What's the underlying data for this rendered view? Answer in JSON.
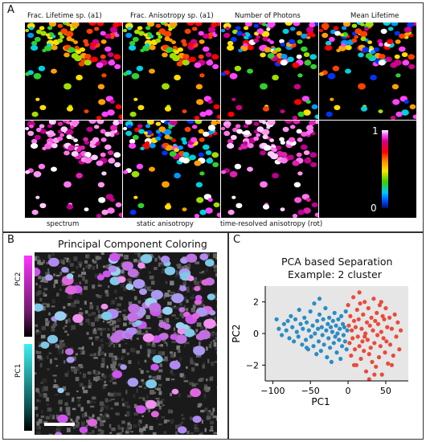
{
  "panel_a": {
    "letter": "A",
    "top_labels": [
      "Frac. Lifetime sp. (a1)",
      "Frac. Anisotropy sp. (a1)",
      "Number of Photons",
      "Mean Lifetime"
    ],
    "bottom_labels": [
      "spectrum",
      "static anisotropy",
      "time-resolved anisotropy (rot)"
    ],
    "colorbar_max": "1",
    "colorbar_min": "0"
  },
  "panel_b": {
    "letter": "B",
    "title": "Principal Component Coloring",
    "pc2_label": "PC2",
    "pc1_label": "PC1"
  },
  "panel_c": {
    "letter": "C"
  },
  "colors": {
    "cluster_blue": "#2a8cc4",
    "cluster_red": "#ea4a3a",
    "plot_bg": "#e6e6e6"
  },
  "chart_data": {
    "type": "scatter",
    "title": "PCA based Separation",
    "subtitle": "Example: 2 cluster",
    "xlabel": "PC1",
    "ylabel": "PC2",
    "xlim": [
      -110,
      80
    ],
    "ylim": [
      -3,
      3
    ],
    "xticks": [
      -100,
      -50,
      0,
      50
    ],
    "yticks": [
      -2,
      0,
      2
    ],
    "grid": false,
    "series": [
      {
        "color": "#2a8cc4",
        "points": [
          [
            -95,
            0.9
          ],
          [
            -92,
            0.3
          ],
          [
            -88,
            -0.1
          ],
          [
            -85,
            0.6
          ],
          [
            -82,
            0.2
          ],
          [
            -80,
            0.8
          ],
          [
            -78,
            -0.3
          ],
          [
            -76,
            1.1
          ],
          [
            -74,
            0.4
          ],
          [
            -72,
            -0.5
          ],
          [
            -70,
            0.9
          ],
          [
            -68,
            0.1
          ],
          [
            -66,
            -0.2
          ],
          [
            -65,
            1.5
          ],
          [
            -63,
            0.6
          ],
          [
            -61,
            -0.7
          ],
          [
            -60,
            0.3
          ],
          [
            -58,
            1.0
          ],
          [
            -56,
            -0.4
          ],
          [
            -55,
            0.7
          ],
          [
            -53,
            -1.0
          ],
          [
            -52,
            0.2
          ],
          [
            -50,
            1.4
          ],
          [
            -49,
            -0.2
          ],
          [
            -47,
            0.5
          ],
          [
            -46,
            -0.8
          ],
          [
            -45,
            1.9
          ],
          [
            -44,
            0.0
          ],
          [
            -42,
            -1.3
          ],
          [
            -41,
            0.8
          ],
          [
            -40,
            0.3
          ],
          [
            -39,
            -0.5
          ],
          [
            -38,
            1.2
          ],
          [
            -36,
            -1.1
          ],
          [
            -35,
            0.4
          ],
          [
            -34,
            -0.1
          ],
          [
            -33,
            0.9
          ],
          [
            -32,
            -0.7
          ],
          [
            -30,
            1.6
          ],
          [
            -29,
            0.2
          ],
          [
            -28,
            -1.5
          ],
          [
            -27,
            0.6
          ],
          [
            -26,
            -0.3
          ],
          [
            -25,
            1.0
          ],
          [
            -24,
            -0.9
          ],
          [
            -23,
            0.4
          ],
          [
            -22,
            -1.8
          ],
          [
            -21,
            0.1
          ],
          [
            -20,
            0.8
          ],
          [
            -19,
            -0.6
          ],
          [
            -18,
            1.3
          ],
          [
            -17,
            -0.2
          ],
          [
            -16,
            0.5
          ],
          [
            -15,
            -1.2
          ],
          [
            -14,
            0.0
          ],
          [
            -13,
            0.9
          ],
          [
            -12,
            -0.4
          ],
          [
            -11,
            0.3
          ],
          [
            -10,
            -1.6
          ],
          [
            -9,
            1.1
          ],
          [
            -8,
            -0.8
          ],
          [
            -7,
            0.6
          ],
          [
            -6,
            -0.1
          ],
          [
            -5,
            0.4
          ],
          [
            -4,
            -0.5
          ],
          [
            -3,
            1.4
          ],
          [
            -2,
            -1.0
          ],
          [
            -1,
            0.2
          ],
          [
            -38,
            2.2
          ],
          [
            -55,
            -0.9
          ]
        ]
      },
      {
        "color": "#ea4a3a",
        "points": [
          [
            0,
            1.8
          ],
          [
            1,
            0.5
          ],
          [
            2,
            -0.6
          ],
          [
            3,
            1.1
          ],
          [
            4,
            -1.4
          ],
          [
            5,
            0.2
          ],
          [
            6,
            -0.3
          ],
          [
            7,
            2.3
          ],
          [
            8,
            0.8
          ],
          [
            9,
            -1.0
          ],
          [
            10,
            0.4
          ],
          [
            11,
            -2.0
          ],
          [
            12,
            1.5
          ],
          [
            13,
            -0.2
          ],
          [
            14,
            0.9
          ],
          [
            15,
            -0.8
          ],
          [
            16,
            1.9
          ],
          [
            17,
            -1.6
          ],
          [
            18,
            0.3
          ],
          [
            19,
            -0.5
          ],
          [
            20,
            1.2
          ],
          [
            21,
            -1.1
          ],
          [
            22,
            2.0
          ],
          [
            23,
            0.0
          ],
          [
            24,
            -2.4
          ],
          [
            25,
            0.7
          ],
          [
            26,
            -0.4
          ],
          [
            27,
            1.6
          ],
          [
            28,
            -1.3
          ],
          [
            29,
            0.5
          ],
          [
            30,
            -0.9
          ],
          [
            31,
            1.0
          ],
          [
            32,
            -1.8
          ],
          [
            33,
            0.2
          ],
          [
            34,
            2.2
          ],
          [
            35,
            -0.6
          ],
          [
            36,
            0.8
          ],
          [
            37,
            -2.1
          ],
          [
            38,
            1.3
          ],
          [
            39,
            -0.1
          ],
          [
            40,
            0.6
          ],
          [
            41,
            -1.5
          ],
          [
            42,
            1.8
          ],
          [
            43,
            -0.8
          ],
          [
            44,
            0.1
          ],
          [
            45,
            -2.6
          ],
          [
            46,
            1.1
          ],
          [
            47,
            -0.3
          ],
          [
            48,
            0.9
          ],
          [
            49,
            -1.2
          ],
          [
            50,
            1.6
          ],
          [
            51,
            -0.5
          ],
          [
            52,
            0.4
          ],
          [
            53,
            -1.9
          ],
          [
            55,
            1.0
          ],
          [
            56,
            -0.7
          ],
          [
            58,
            0.3
          ],
          [
            60,
            -1.4
          ],
          [
            62,
            1.2
          ],
          [
            64,
            -0.2
          ],
          [
            66,
            0.7
          ],
          [
            68,
            -1.0
          ],
          [
            70,
            0.2
          ],
          [
            15,
            2.6
          ],
          [
            28,
            -2.9
          ],
          [
            35,
            -2.6
          ],
          [
            8,
            -2.0
          ],
          [
            44,
            2.0
          ],
          [
            58,
            -2.0
          ],
          [
            22,
            -0.2
          ]
        ]
      }
    ]
  }
}
